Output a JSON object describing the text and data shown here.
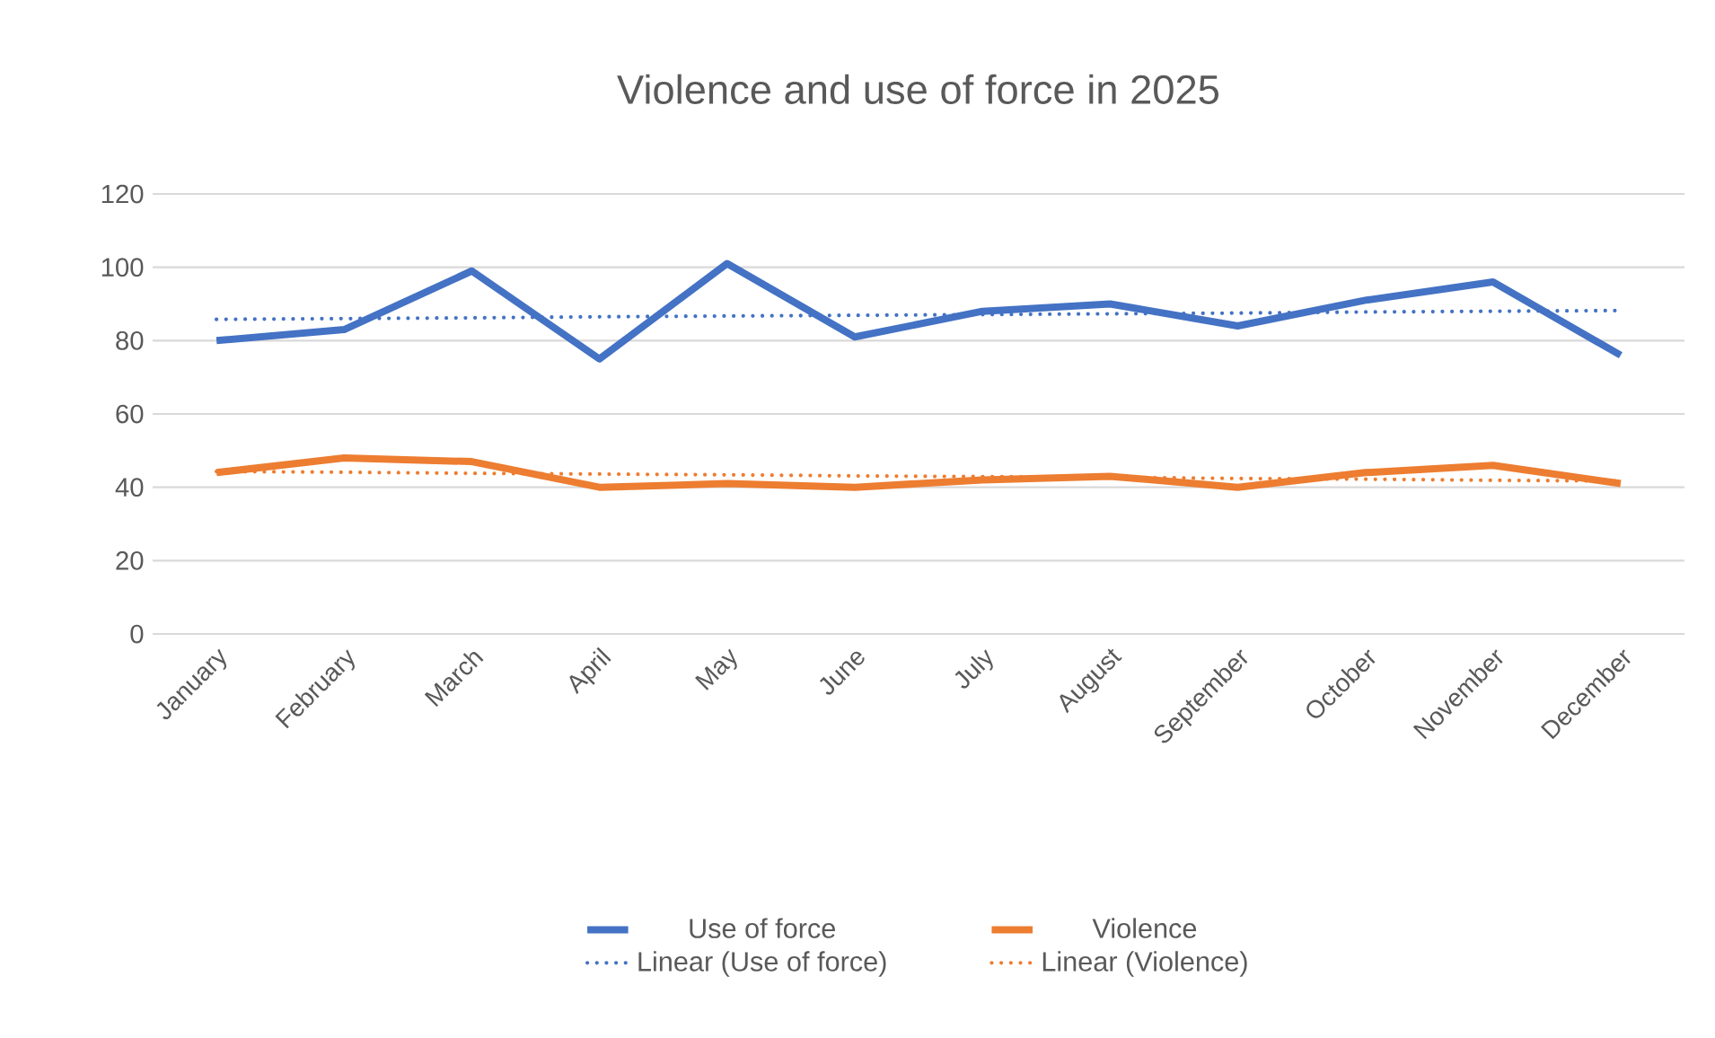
{
  "chart_data": {
    "type": "line",
    "title": "Violence and use of force in 2025",
    "categories": [
      "January",
      "February",
      "March",
      "April",
      "May",
      "June",
      "July",
      "August",
      "September",
      "October",
      "November",
      "December"
    ],
    "series": [
      {
        "name": "Use of force",
        "color": "#4472c4",
        "values": [
          80,
          83,
          99,
          75,
          101,
          81,
          88,
          90,
          84,
          91,
          96,
          76
        ]
      },
      {
        "name": "Violence",
        "color": "#ed7d31",
        "values": [
          44,
          48,
          47,
          40,
          41,
          40,
          42,
          43,
          40,
          44,
          46,
          41
        ]
      },
      {
        "name": "Linear (Use of force)",
        "color": "#4472c4",
        "line_style": "dotted",
        "values": [
          85.8,
          86.0,
          86.2,
          86.5,
          86.7,
          86.9,
          87.1,
          87.3,
          87.5,
          87.8,
          88.0,
          88.2
        ]
      },
      {
        "name": "Linear (Violence)",
        "color": "#ed7d31",
        "line_style": "dotted",
        "values": [
          44.3,
          44.1,
          43.8,
          43.6,
          43.4,
          43.1,
          42.9,
          42.7,
          42.4,
          42.2,
          41.9,
          41.7
        ]
      }
    ],
    "ylim": [
      0,
      120
    ],
    "yticks": [
      0,
      20,
      40,
      60,
      80,
      100,
      120
    ],
    "grid": "y",
    "legend": "bottom"
  }
}
